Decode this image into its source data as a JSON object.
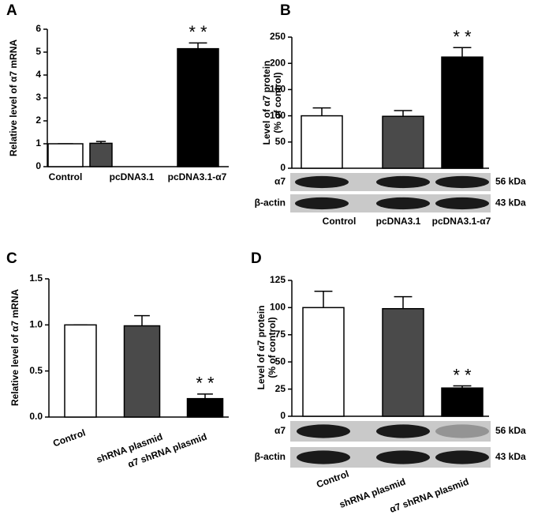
{
  "chart_data": [
    {
      "type": "bar",
      "panel": "A",
      "ylabel": [
        "Relative level of α7 mRNA"
      ],
      "categories": [
        "Control",
        "pcDNA3.1",
        "pcDNA3.1-α7"
      ],
      "values": [
        1,
        1.02,
        5.15
      ],
      "errors": [
        0,
        0.08,
        0.25
      ],
      "colors": [
        "#ffffff",
        "#4a4a4a",
        "#000000"
      ],
      "ylim": [
        0,
        6
      ],
      "yticks": [
        0,
        1,
        2,
        3,
        4,
        5,
        6
      ],
      "annotations": [
        {
          "text": "* *",
          "category": 2
        }
      ]
    },
    {
      "type": "bar",
      "panel": "B",
      "ylabel": [
        "Level of α7 protein",
        "(% of control)"
      ],
      "categories": [
        "Control",
        "pcDNA3.1",
        "pcDNA3.1-α7"
      ],
      "values": [
        100,
        99,
        212
      ],
      "errors": [
        15,
        11,
        18
      ],
      "colors": [
        "#ffffff",
        "#4a4a4a",
        "#000000"
      ],
      "ylim": [
        0,
        250
      ],
      "yticks": [
        0,
        50,
        100,
        150,
        200,
        250
      ],
      "annotations": [
        {
          "text": "* *",
          "category": 2
        }
      ],
      "blot": [
        {
          "label": "α7",
          "size": "56 kDa"
        },
        {
          "label": "β-actin",
          "size": "43 kDa"
        }
      ]
    },
    {
      "type": "bar",
      "panel": "C",
      "ylabel": [
        "Relative level of α7 mRNA"
      ],
      "categories": [
        "Control",
        "shRNA plasmid",
        "α7 shRNA plasmid"
      ],
      "values": [
        1.0,
        0.99,
        0.2
      ],
      "errors": [
        0,
        0.11,
        0.05
      ],
      "colors": [
        "#ffffff",
        "#4a4a4a",
        "#000000"
      ],
      "ylim": [
        0,
        1.5
      ],
      "yticks": [
        {
          "value": 0,
          "label": "0.0"
        },
        0.5,
        {
          "value": 1,
          "label": "1.0"
        },
        1.5
      ],
      "annotations": [
        {
          "text": "* *",
          "category": 2
        }
      ]
    },
    {
      "type": "bar",
      "panel": "D",
      "ylabel": [
        "Level of α7 protein",
        "(% of control)"
      ],
      "categories": [
        "Control",
        "shRNA plasmid",
        "α7 shRNA plasmid"
      ],
      "values": [
        100,
        99,
        26
      ],
      "errors": [
        15,
        11,
        2
      ],
      "colors": [
        "#ffffff",
        "#4a4a4a",
        "#000000"
      ],
      "ylim": [
        0,
        125
      ],
      "yticks": [
        0,
        25,
        50,
        75,
        100,
        125
      ],
      "annotations": [
        {
          "text": "* *",
          "category": 2
        }
      ],
      "blot": [
        {
          "label": "α7",
          "size": "56 kDa"
        },
        {
          "label": "β-actin",
          "size": "43 kDa"
        }
      ]
    }
  ]
}
